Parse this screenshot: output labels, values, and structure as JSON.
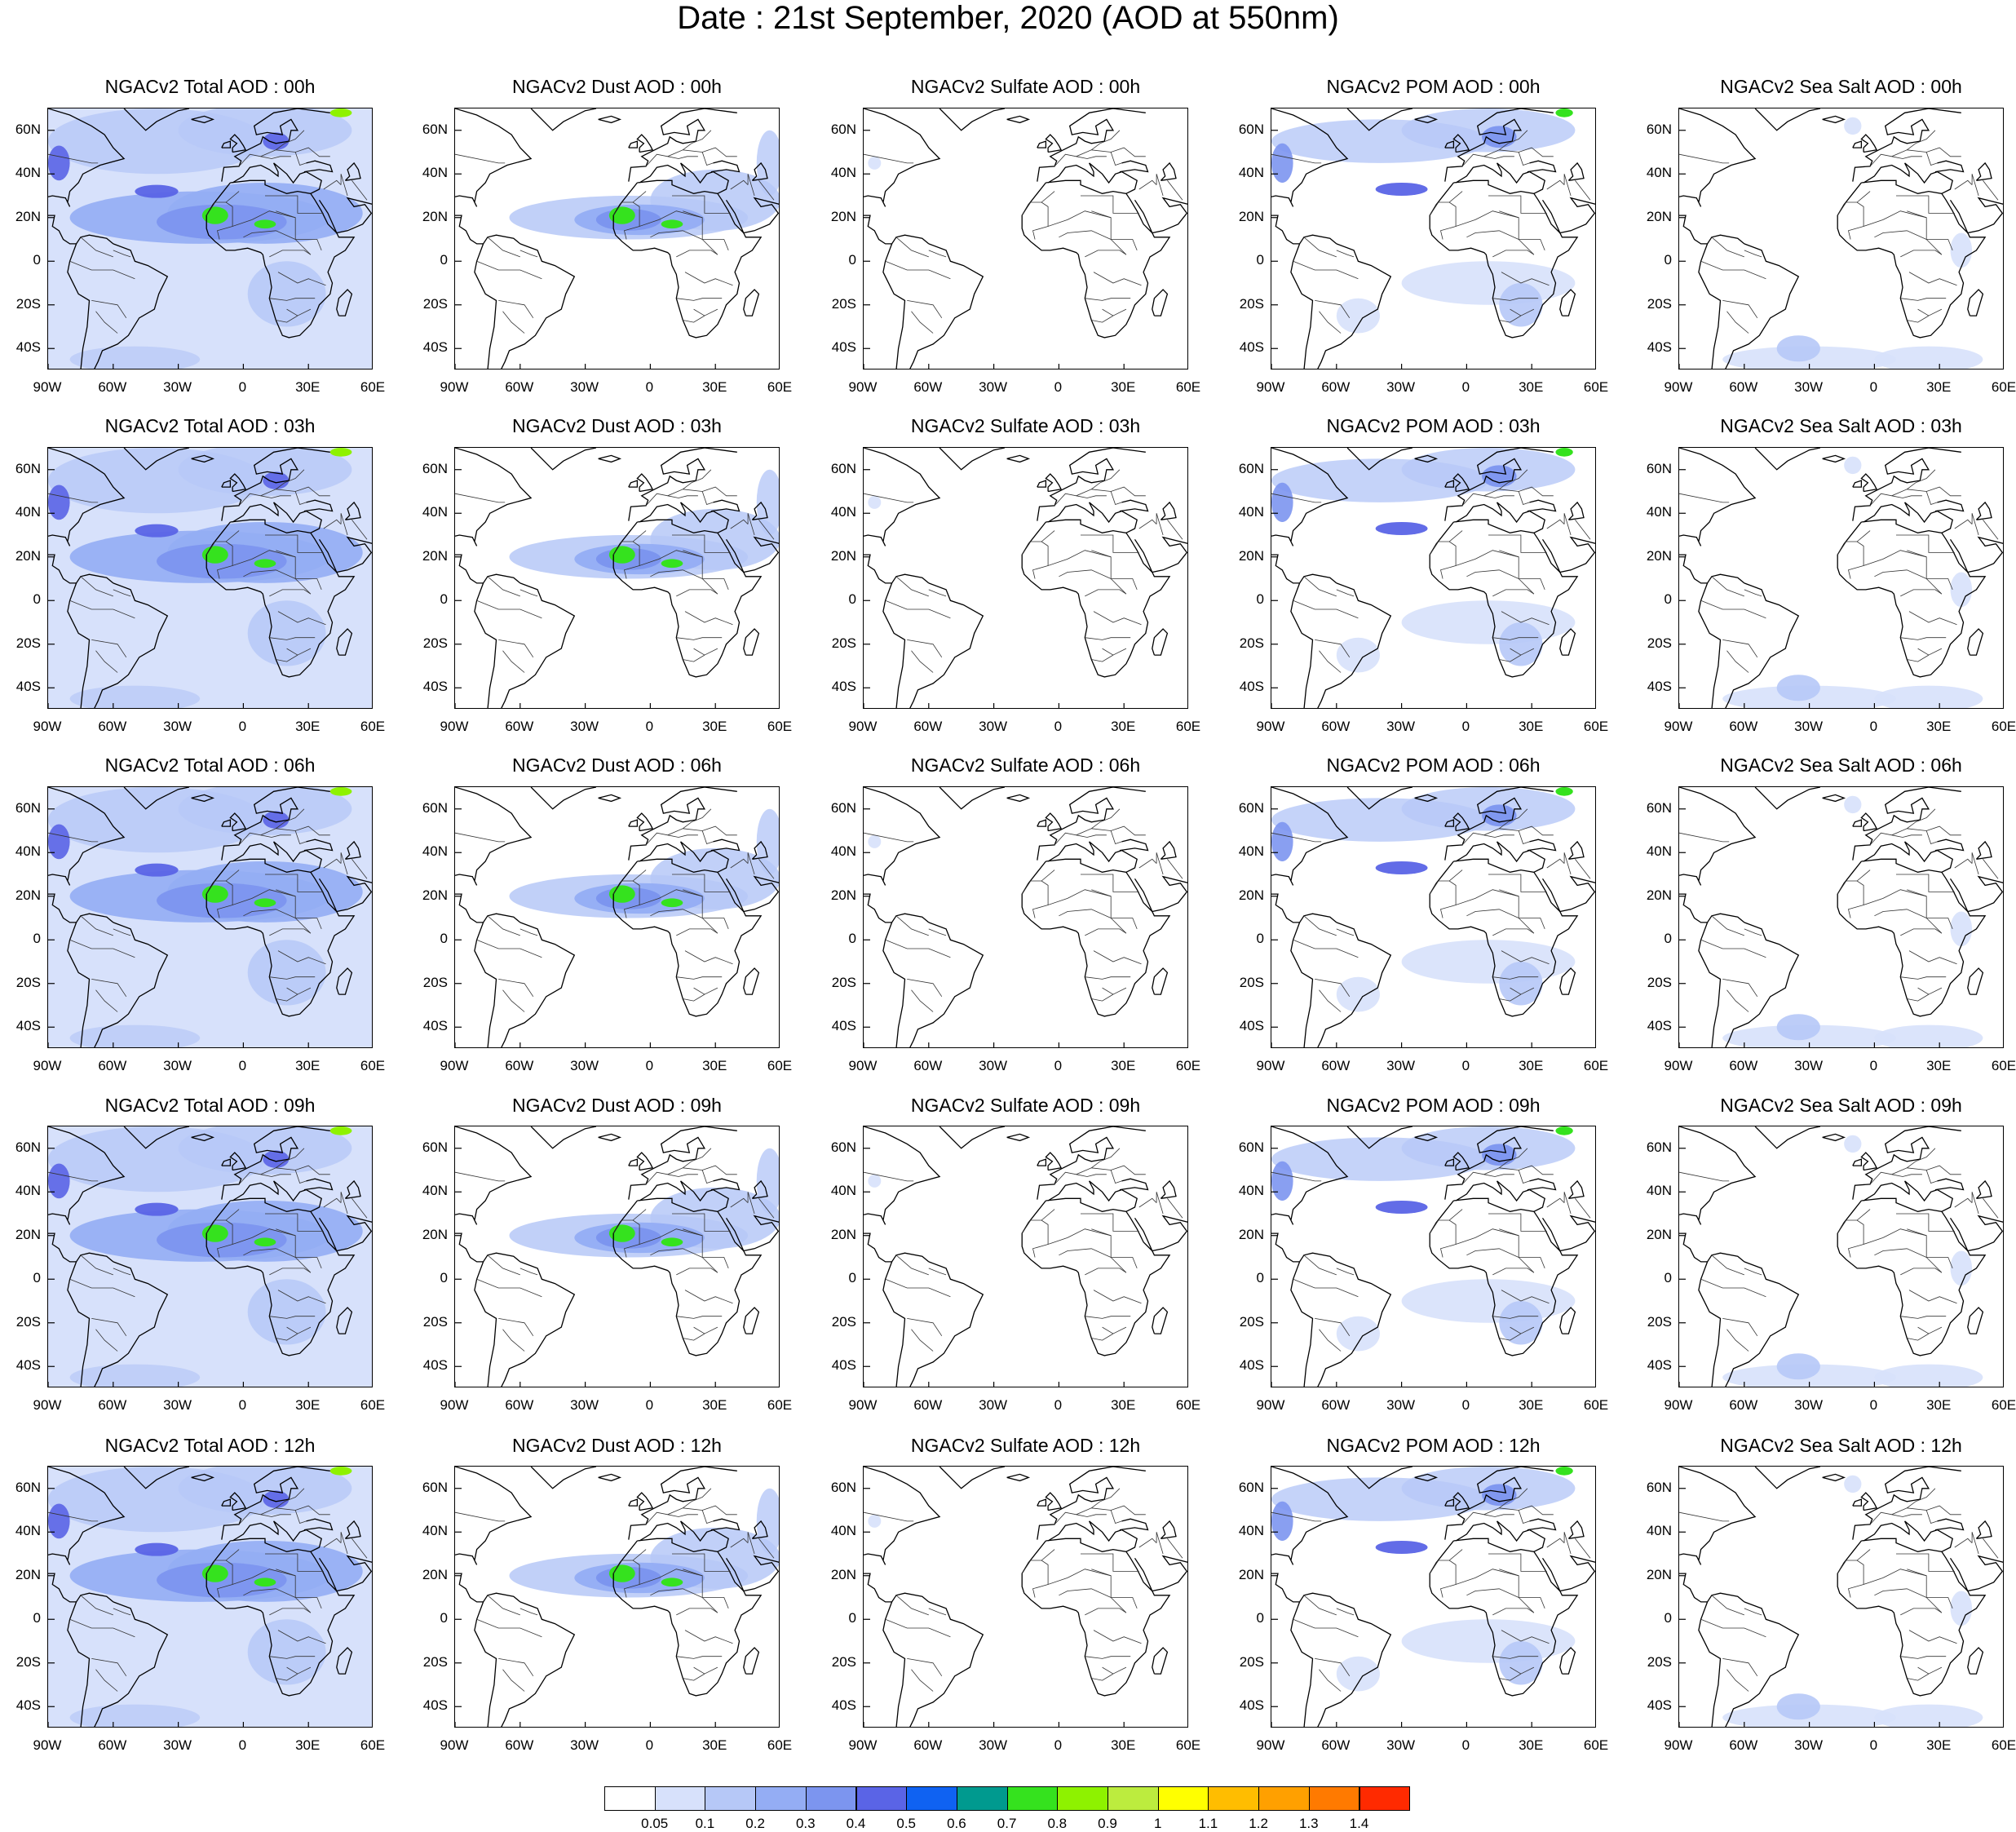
{
  "title": "Date : 21st  September, 2020 (AOD at 550nm)",
  "panels": [
    [
      "NGACv2 Total AOD : 00h",
      "NGACv2 Dust AOD : 00h",
      "NGACv2 Sulfate AOD : 00h",
      "NGACv2 POM AOD : 00h",
      "NGACv2 Sea Salt AOD : 00h"
    ],
    [
      "NGACv2 Total AOD : 03h",
      "NGACv2 Dust AOD : 03h",
      "NGACv2 Sulfate AOD : 03h",
      "NGACv2 POM AOD : 03h",
      "NGACv2 Sea Salt AOD : 03h"
    ],
    [
      "NGACv2 Total AOD : 06h",
      "NGACv2 Dust AOD : 06h",
      "NGACv2 Sulfate AOD : 06h",
      "NGACv2 POM AOD : 06h",
      "NGACv2 Sea Salt AOD : 06h"
    ],
    [
      "NGACv2 Total AOD : 09h",
      "NGACv2 Dust AOD : 09h",
      "NGACv2 Sulfate AOD : 09h",
      "NGACv2 POM AOD : 09h",
      "NGACv2 Sea Salt  AOD : 09h"
    ],
    [
      "NGACv2 Total AOD  : 12h",
      "NGACv2 Dust AOD : 12h",
      "NGACv2 Sulfate AOD : 12h",
      "NGACv2 POM  AOD : 12h",
      "NGACv2 Sea Salt  AOD : 12h"
    ]
  ],
  "panel_types": [
    "total",
    "dust",
    "sulfate",
    "pom",
    "seasalt"
  ],
  "y_labels": [
    "60N",
    "40N",
    "20N",
    "0",
    "20S",
    "40S"
  ],
  "y_values": [
    60,
    40,
    20,
    0,
    -20,
    -40
  ],
  "x_labels": [
    "90W",
    "60W",
    "30W",
    "0",
    "30E",
    "60E"
  ],
  "x_values": [
    -90,
    -60,
    -30,
    0,
    30,
    60
  ],
  "extent": {
    "lon": [
      -90,
      60
    ],
    "lat": [
      -50,
      70
    ]
  },
  "colorbar": {
    "labels": [
      "0.05",
      "0.1",
      "0.2",
      "0.3",
      "0.4",
      "0.5",
      "0.6",
      "0.7",
      "0.8",
      "0.9",
      "1",
      "1.1",
      "1.2",
      "1.3",
      "1.4"
    ],
    "colors": [
      "#ffffff",
      "#d7e1fb",
      "#b6c8f7",
      "#94adf4",
      "#7c95ef",
      "#5a64e6",
      "#0f62f2",
      "#009a8f",
      "#35e21e",
      "#8ef200",
      "#bcec3e",
      "#ffff00",
      "#ffbd00",
      "#ffa000",
      "#ff7a00",
      "#ff2a00"
    ]
  }
}
